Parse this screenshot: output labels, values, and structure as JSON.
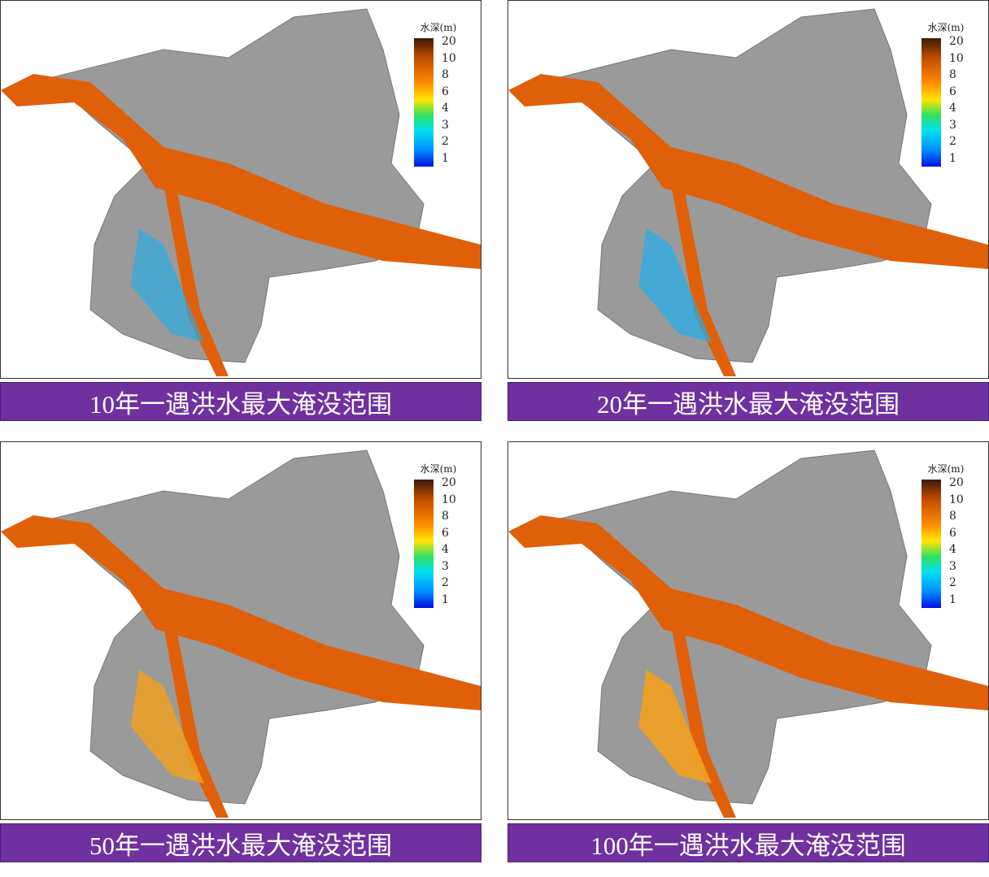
{
  "legend": {
    "title": "水深(m)",
    "ticks": [
      "20",
      "10",
      "8",
      "6",
      "4",
      "3",
      "2",
      "1"
    ],
    "colors": [
      "#3a1a0a",
      "#c04a00",
      "#ff8c00",
      "#ffe600",
      "#30e060",
      "#00e0f0",
      "#0090ff",
      "#0010e0"
    ]
  },
  "panels": [
    {
      "caption": "10年一遇洪水最大淹没范围",
      "flood_extent": 0.2
    },
    {
      "caption": "20年一遇洪水最大淹没范围",
      "flood_extent": 0.35
    },
    {
      "caption": "50年一遇洪水最大淹没范围",
      "flood_extent": 0.65
    },
    {
      "caption": "100年一遇洪水最大淹没范围",
      "flood_extent": 0.85
    }
  ],
  "colors": {
    "caption_bg": "#7030a0",
    "river": "#e0600a",
    "terrain": "#9a9a9a"
  }
}
